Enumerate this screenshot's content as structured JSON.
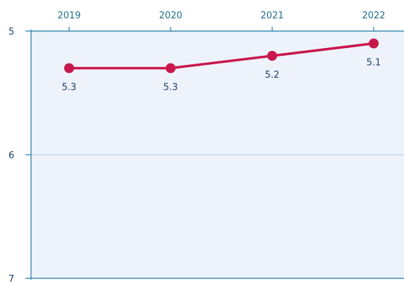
{
  "chart_data": {
    "type": "line",
    "x": [
      "2019",
      "2020",
      "2021",
      "2022"
    ],
    "series": [
      {
        "values": [
          5.3,
          5.3,
          5.2,
          5.1
        ],
        "labels": [
          "5.3",
          "5.3",
          "5.2",
          "5.1"
        ]
      }
    ],
    "y_ticks": [
      "5",
      "6",
      "7"
    ],
    "ylim": [
      5,
      7
    ],
    "y_inverted": true,
    "x_axis_position": "top",
    "grid": "horizontal",
    "colors": {
      "line": "#c8174a",
      "marker": "#c8174a",
      "plot_background": "#eef3fb",
      "axis": "#1f7aa8",
      "gridline": "#a8c8e0"
    }
  }
}
